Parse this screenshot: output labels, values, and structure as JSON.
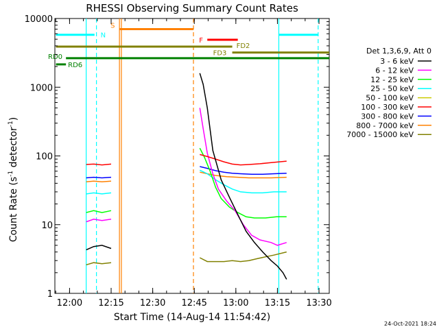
{
  "chart_data": {
    "type": "line",
    "title": "RHESSI Observing Summary Count Rates",
    "xlabel": "Start Time (14-Aug-14 11:54:42)",
    "ylabel": "Count Rate (s",
    "ylabel_sup1": "-1",
    "ylabel_mid": " detector",
    "ylabel_sup2": "-1",
    "ylabel_end": ")",
    "ylog": true,
    "ylim": [
      1,
      10000
    ],
    "y_ticks": [
      1,
      10,
      100,
      1000,
      10000
    ],
    "y_tick_labels": [
      "1",
      "10",
      "100",
      "1000",
      "10000"
    ],
    "xlim_min": [
      0,
      99
    ],
    "x_ticks_min": [
      5.3,
      20.3,
      35.3,
      50.3,
      65.3,
      80.3,
      95.3
    ],
    "x_tick_labels": [
      "12:00",
      "12:15",
      "12:30",
      "12:45",
      "13:00",
      "13:15",
      "13:30"
    ],
    "legend_title": "Det 1,3,6,9, Att 0",
    "legend_position": "right",
    "series": [
      {
        "name": "3 - 6 keV",
        "color": "#000000",
        "segments": [
          [
            [
              11.3,
              4.3
            ],
            [
              14,
              4.8
            ],
            [
              17,
              5.0
            ],
            [
              20.3,
              4.5
            ]
          ],
          [
            [
              52.3,
              1600
            ],
            [
              53.5,
              1100
            ],
            [
              55,
              500
            ],
            [
              57,
              120
            ],
            [
              60,
              45
            ],
            [
              63,
              25
            ],
            [
              66,
              14
            ],
            [
              69,
              8
            ],
            [
              72,
              5.5
            ],
            [
              75,
              4
            ],
            [
              78,
              3
            ],
            [
              80.3,
              2.5
            ],
            [
              82.3,
              2.0
            ],
            [
              83.6,
              1.6
            ]
          ]
        ]
      },
      {
        "name": "6 - 12 keV",
        "color": "#ff00ff",
        "segments": [
          [
            [
              11.3,
              11
            ],
            [
              14,
              12
            ],
            [
              17,
              11.5
            ],
            [
              20.3,
              12
            ]
          ],
          [
            [
              52.3,
              500
            ],
            [
              53.5,
              250
            ],
            [
              55,
              110
            ],
            [
              57,
              55
            ],
            [
              59,
              33
            ],
            [
              62,
              22
            ],
            [
              65,
              16
            ],
            [
              68,
              10
            ],
            [
              71,
              7
            ],
            [
              74,
              6
            ],
            [
              78,
              5.5
            ],
            [
              80.3,
              5
            ],
            [
              83.6,
              5.5
            ]
          ]
        ]
      },
      {
        "name": "12 - 25 keV",
        "color": "#00ff00",
        "segments": [
          [
            [
              11.3,
              15
            ],
            [
              14,
              16
            ],
            [
              17,
              15
            ],
            [
              20.3,
              16
            ]
          ],
          [
            [
              52.3,
              130
            ],
            [
              54,
              95
            ],
            [
              56,
              60
            ],
            [
              58,
              35
            ],
            [
              60,
              24
            ],
            [
              63,
              18
            ],
            [
              66,
              15
            ],
            [
              69,
              13
            ],
            [
              72,
              12.5
            ],
            [
              76,
              12.5
            ],
            [
              80,
              13
            ],
            [
              83.6,
              13
            ]
          ]
        ]
      },
      {
        "name": "25 - 50 keV",
        "color": "#00ffff",
        "segments": [
          [
            [
              11.3,
              28
            ],
            [
              14,
              29
            ],
            [
              17,
              28
            ],
            [
              20.3,
              29
            ]
          ],
          [
            [
              52.3,
              62
            ],
            [
              55,
              55
            ],
            [
              58,
              45
            ],
            [
              61,
              38
            ],
            [
              64,
              33
            ],
            [
              67,
              30
            ],
            [
              71,
              29
            ],
            [
              75,
              29
            ],
            [
              79,
              30
            ],
            [
              83.6,
              30
            ]
          ]
        ]
      },
      {
        "name": "50 - 100 keV",
        "color": "#cccc00",
        "segments": []
      },
      {
        "name": "100 - 300 keV",
        "color": "#ff0000",
        "segments": [
          [
            [
              11.3,
              75
            ],
            [
              14,
              76
            ],
            [
              17,
              74
            ],
            [
              20.3,
              76
            ]
          ],
          [
            [
              52.3,
              105
            ],
            [
              55,
              98
            ],
            [
              58,
              90
            ],
            [
              61,
              82
            ],
            [
              64,
              76
            ],
            [
              67,
              74
            ],
            [
              70,
              75
            ],
            [
              74,
              77
            ],
            [
              78,
              80
            ],
            [
              83.6,
              84
            ]
          ]
        ]
      },
      {
        "name": "300 - 800 keV",
        "color": "#0000ff",
        "segments": [
          [
            [
              11.3,
              48
            ],
            [
              14,
              49
            ],
            [
              17,
              48
            ],
            [
              20.3,
              49
            ]
          ],
          [
            [
              52.3,
              70
            ],
            [
              55,
              66
            ],
            [
              58,
              61
            ],
            [
              61,
              58
            ],
            [
              64,
              56
            ],
            [
              67,
              55
            ],
            [
              71,
              54
            ],
            [
              75,
              54
            ],
            [
              79,
              55
            ],
            [
              83.6,
              56
            ]
          ]
        ]
      },
      {
        "name": "800 - 7000 keV",
        "color": "#ff8000",
        "segments": [
          [
            [
              11.3,
              42
            ],
            [
              14,
              43
            ],
            [
              17,
              42
            ],
            [
              20.3,
              43
            ]
          ],
          [
            [
              52.3,
              58
            ],
            [
              55,
              55
            ],
            [
              58,
              52
            ],
            [
              62,
              50
            ],
            [
              66,
              49
            ],
            [
              70,
              48
            ],
            [
              74,
              48
            ],
            [
              78,
              48
            ],
            [
              83.6,
              49
            ]
          ]
        ]
      },
      {
        "name": "7000 - 15000 keV",
        "color": "#808000",
        "segments": [
          [
            [
              11.3,
              2.6
            ],
            [
              14,
              2.8
            ],
            [
              17,
              2.7
            ],
            [
              20.3,
              2.8
            ]
          ],
          [
            [
              52.3,
              3.3
            ],
            [
              55,
              2.9
            ],
            [
              58,
              2.9
            ],
            [
              61,
              2.9
            ],
            [
              64,
              3.0
            ],
            [
              67,
              2.9
            ],
            [
              70,
              3.0
            ],
            [
              73,
              3.2
            ],
            [
              76,
              3.4
            ],
            [
              79,
              3.6
            ],
            [
              83.6,
              4.0
            ]
          ]
        ]
      }
    ],
    "state_bars": [
      {
        "label": "N",
        "color": "#00ffff",
        "y": 5800,
        "segments": [
          [
            0.4,
            14.3
          ],
          [
            80.8,
            95.0
          ]
        ]
      },
      {
        "label": "S",
        "color": "#ff8000",
        "y": 7000,
        "segments": [
          [
            23.3,
            50.0
          ]
        ]
      },
      {
        "label": "F",
        "color": "#ff0000",
        "y": 4900,
        "segments": [
          [
            55.0,
            66.0
          ]
        ]
      },
      {
        "label": "FD2",
        "color": "#808000",
        "y": 3900,
        "segments": [
          [
            0.4,
            64.0
          ]
        ]
      },
      {
        "label": "FD3",
        "color": "#808000",
        "y": 3200,
        "segments": [
          [
            64.0,
            99.0
          ]
        ]
      },
      {
        "label": "RD0",
        "color": "#008000",
        "y": 2650,
        "segments": [
          [
            4.0,
            99.0
          ]
        ]
      },
      {
        "label": "RD6",
        "color": "#008000",
        "y": 2150,
        "segments": [
          [
            0.4,
            4.0
          ]
        ]
      }
    ],
    "vlines": [
      {
        "x": 11.3,
        "color": "#00ffff",
        "style": "solid"
      },
      {
        "x": 15.0,
        "color": "#00ffff",
        "style": "dashed"
      },
      {
        "x": 23.3,
        "color": "#ff8000",
        "style": "solid"
      },
      {
        "x": 24.0,
        "color": "#ff8000",
        "style": "solid"
      },
      {
        "x": 50.0,
        "color": "#ff8000",
        "style": "dashed"
      },
      {
        "x": 80.8,
        "color": "#00ffff",
        "style": "solid"
      },
      {
        "x": 95.0,
        "color": "#00ffff",
        "style": "dashed"
      }
    ],
    "footer": "24-Oct-2021 18:24"
  }
}
